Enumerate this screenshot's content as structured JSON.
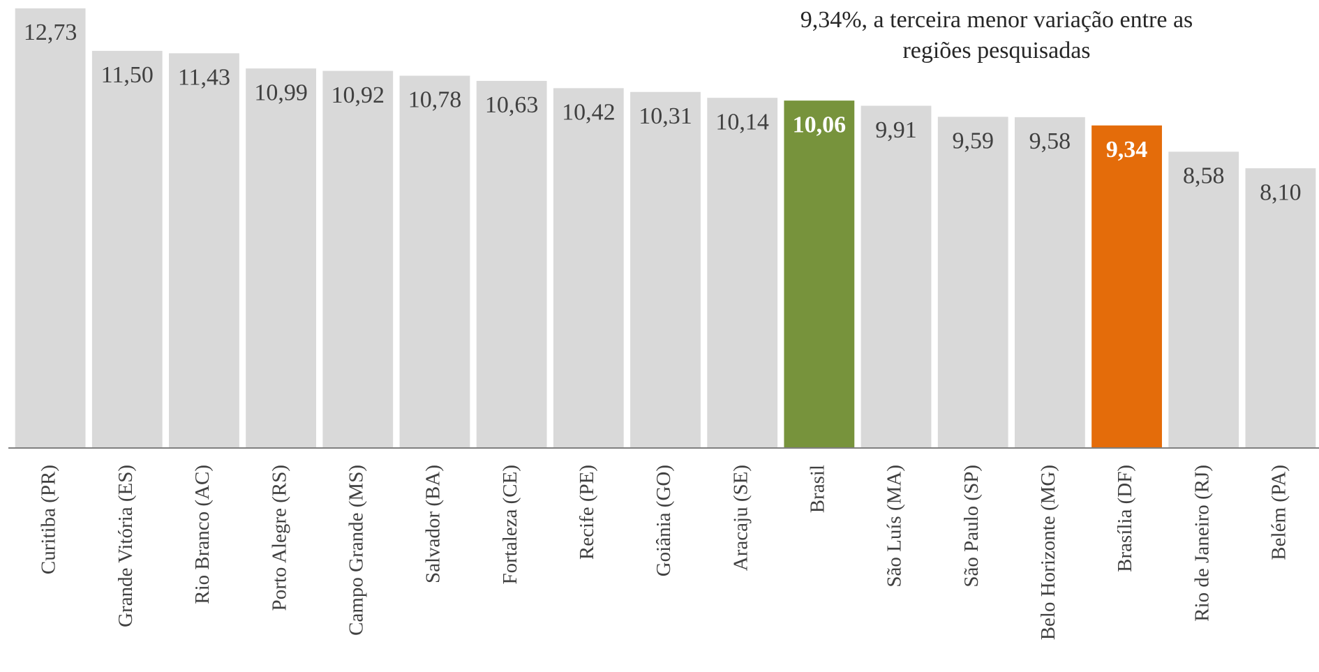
{
  "chart_data": {
    "type": "bar",
    "annotation": [
      "9,34%, a terceira menor variação entre as",
      "regiões pesquisadas"
    ],
    "categories": [
      "Curitiba (PR)",
      "Grande Vitória (ES)",
      "Rio Branco (AC)",
      "Porto Alegre (RS)",
      "Campo Grande (MS)",
      "Salvador (BA)",
      "Fortaleza (CE)",
      "Recife (PE)",
      "Goiânia (GO)",
      "Aracaju (SE)",
      "Brasil",
      "São Luís (MA)",
      "São Paulo (SP)",
      "Belo Horizonte (MG)",
      "Brasília (DF)",
      "Rio de Janeiro (RJ)",
      "Belém (PA)"
    ],
    "values": [
      12.73,
      11.5,
      11.43,
      10.99,
      10.92,
      10.78,
      10.63,
      10.42,
      10.31,
      10.14,
      10.06,
      9.91,
      9.59,
      9.58,
      9.34,
      8.58,
      8.1
    ],
    "value_labels": [
      "12,73",
      "11,50",
      "11,43",
      "10,99",
      "10,92",
      "10,78",
      "10,63",
      "10,42",
      "10,31",
      "10,14",
      "10,06",
      "9,91",
      "9,59",
      "9,58",
      "9,34",
      "8,58",
      "8,10"
    ],
    "colors": [
      "#d9d9d9",
      "#d9d9d9",
      "#d9d9d9",
      "#d9d9d9",
      "#d9d9d9",
      "#d9d9d9",
      "#d9d9d9",
      "#d9d9d9",
      "#d9d9d9",
      "#d9d9d9",
      "#77933c",
      "#d9d9d9",
      "#d9d9d9",
      "#d9d9d9",
      "#e46c0a",
      "#d9d9d9",
      "#d9d9d9"
    ],
    "value_label_colors": [
      "#404040",
      "#404040",
      "#404040",
      "#404040",
      "#404040",
      "#404040",
      "#404040",
      "#404040",
      "#404040",
      "#404040",
      "#ffffff",
      "#404040",
      "#404040",
      "#404040",
      "#ffffff",
      "#404040",
      "#404040"
    ]
  }
}
